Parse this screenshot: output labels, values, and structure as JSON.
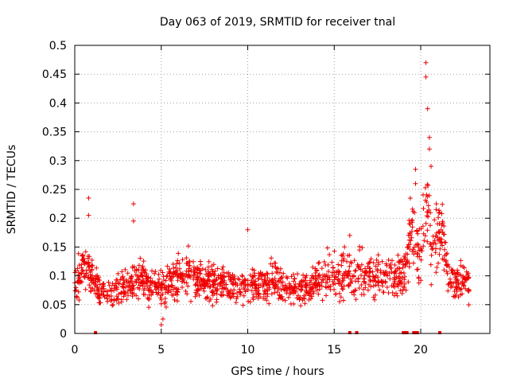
{
  "chart_data": {
    "type": "scatter",
    "title": "Day 063 of 2019, SRMTID for receiver tnal",
    "xlabel": "GPS time / hours",
    "ylabel": "SRMTID / TECUs",
    "xlim": [
      0,
      24
    ],
    "ylim": [
      0,
      0.5
    ],
    "xticks": [
      0,
      5,
      10,
      15,
      20
    ],
    "yticks": [
      0,
      0.05,
      0.1,
      0.15,
      0.2,
      0.25,
      0.3,
      0.35,
      0.4,
      0.45,
      0.5
    ],
    "xtick_labels": [
      "0",
      "5",
      "10",
      "15",
      "20"
    ],
    "ytick_labels": [
      "0",
      "0.05",
      "0.1",
      "0.15",
      "0.2",
      "0.25",
      "0.3",
      "0.35",
      "0.4",
      "0.45",
      "0.5"
    ],
    "grid": true,
    "marker": "+",
    "color": "#ee0000",
    "series": [
      {
        "name": "SRMTID",
        "approx_profile": [
          [
            0.0,
            0.09
          ],
          [
            0.5,
            0.11
          ],
          [
            1.0,
            0.1
          ],
          [
            1.5,
            0.07
          ],
          [
            2.0,
            0.07
          ],
          [
            2.5,
            0.08
          ],
          [
            3.0,
            0.08
          ],
          [
            3.5,
            0.09
          ],
          [
            4.0,
            0.09
          ],
          [
            4.5,
            0.08
          ],
          [
            5.0,
            0.08
          ],
          [
            5.5,
            0.09
          ],
          [
            6.0,
            0.1
          ],
          [
            6.5,
            0.1
          ],
          [
            7.0,
            0.1
          ],
          [
            7.5,
            0.09
          ],
          [
            8.0,
            0.09
          ],
          [
            8.5,
            0.09
          ],
          [
            9.0,
            0.09
          ],
          [
            9.5,
            0.08
          ],
          [
            10.0,
            0.08
          ],
          [
            10.5,
            0.08
          ],
          [
            11.0,
            0.08
          ],
          [
            11.5,
            0.09
          ],
          [
            12.0,
            0.09
          ],
          [
            12.5,
            0.08
          ],
          [
            13.0,
            0.08
          ],
          [
            13.5,
            0.08
          ],
          [
            14.0,
            0.09
          ],
          [
            14.5,
            0.1
          ],
          [
            15.0,
            0.1
          ],
          [
            15.5,
            0.1
          ],
          [
            16.0,
            0.1
          ],
          [
            16.5,
            0.1
          ],
          [
            17.0,
            0.1
          ],
          [
            17.5,
            0.1
          ],
          [
            18.0,
            0.1
          ],
          [
            18.5,
            0.1
          ],
          [
            19.0,
            0.1
          ],
          [
            19.5,
            0.18
          ],
          [
            20.0,
            0.13
          ],
          [
            20.3,
            0.25
          ],
          [
            20.6,
            0.15
          ],
          [
            21.0,
            0.17
          ],
          [
            21.3,
            0.17
          ],
          [
            21.6,
            0.1
          ],
          [
            22.0,
            0.09
          ],
          [
            22.5,
            0.09
          ],
          [
            22.8,
            0.09
          ]
        ],
        "notable_points": [
          {
            "x": 0.8,
            "y": 0.235
          },
          {
            "x": 0.8,
            "y": 0.205
          },
          {
            "x": 3.4,
            "y": 0.225
          },
          {
            "x": 3.4,
            "y": 0.195
          },
          {
            "x": 20.3,
            "y": 0.47
          },
          {
            "x": 20.3,
            "y": 0.445
          },
          {
            "x": 20.4,
            "y": 0.39
          },
          {
            "x": 20.5,
            "y": 0.34
          },
          {
            "x": 20.5,
            "y": 0.32
          },
          {
            "x": 20.6,
            "y": 0.29
          },
          {
            "x": 19.7,
            "y": 0.285
          },
          {
            "x": 19.7,
            "y": 0.26
          },
          {
            "x": 20.9,
            "y": 0.225
          },
          {
            "x": 21.1,
            "y": 0.21
          },
          {
            "x": 5.0,
            "y": 0.015
          },
          {
            "x": 5.1,
            "y": 0.025
          },
          {
            "x": 15.9,
            "y": 0.17
          },
          {
            "x": 10.0,
            "y": 0.18
          }
        ],
        "zero_points_x": [
          1.2,
          15.9,
          16.3,
          19.0,
          19.1,
          19.2,
          19.6,
          19.7,
          19.8,
          21.1
        ]
      }
    ]
  }
}
